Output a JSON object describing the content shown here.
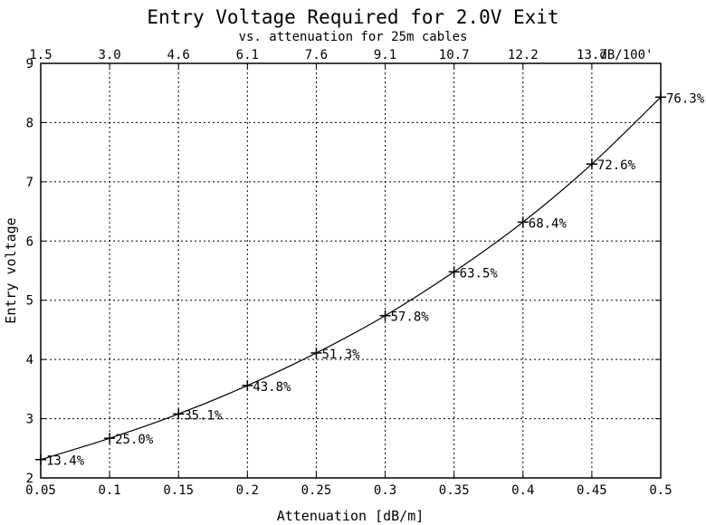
{
  "chart_data": {
    "type": "line",
    "title": "Entry Voltage Required for 2.0V Exit",
    "subtitle": "vs. attenuation for 25m cables",
    "xlabel": "Attenuation [dB/m]",
    "ylabel": "Entry voltage",
    "xlim": [
      0.05,
      0.5
    ],
    "ylim": [
      2,
      9
    ],
    "grid": true,
    "x_ticks": [
      "0.05",
      "0.1",
      "0.15",
      "0.2",
      "0.25",
      "0.3",
      "0.35",
      "0.4",
      "0.45",
      "0.5"
    ],
    "y_ticks": [
      "2",
      "3",
      "4",
      "5",
      "6",
      "7",
      "8",
      "9"
    ],
    "top_axis_ticks": [
      "1.5",
      "3.0",
      "4.6",
      "6.1",
      "7.6",
      "9.1",
      "10.7",
      "12.2",
      "13.7"
    ],
    "top_axis_unit": "dB/100'",
    "series": [
      {
        "x": [
          0.05,
          0.1,
          0.15,
          0.2,
          0.25,
          0.3,
          0.35,
          0.4,
          0.45,
          0.5
        ],
        "y": [
          2.31,
          2.67,
          3.08,
          3.56,
          4.11,
          4.74,
          5.48,
          6.32,
          7.3,
          8.43
        ],
        "labels": [
          "13.4%",
          "25.0%",
          "35.1%",
          "43.8%",
          "51.3%",
          "57.8%",
          "63.5%",
          "68.4%",
          "72.6%",
          "76.3%"
        ]
      }
    ]
  }
}
